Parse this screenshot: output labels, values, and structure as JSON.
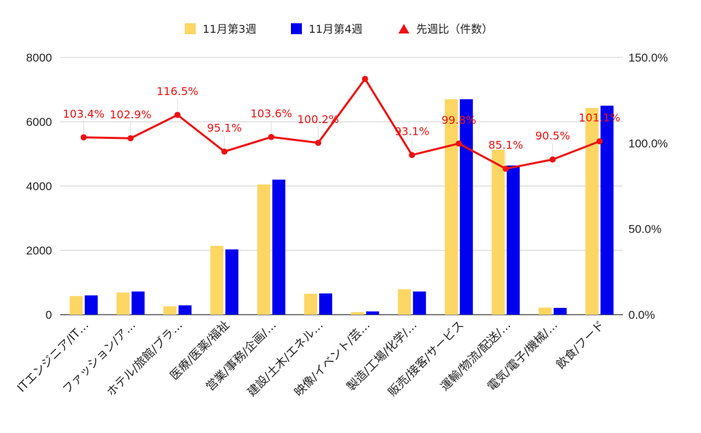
{
  "chart_data": {
    "type": "bar",
    "categories": [
      "ITエンジニア/IT…",
      "ファッション/ア…",
      "ホテル/旅館/ブラ…",
      "医療/医薬/福祉",
      "営業/事務/企画/…",
      "建設/土木/エネル…",
      "映像/イベント/芸…",
      "製造/工場/化学/…",
      "販売/接客/サービス",
      "運輸/物流/配送/…",
      "電気/電子/機械/…",
      "飲食/フード"
    ],
    "series": [
      {
        "name": "11月第3週",
        "type": "bar",
        "axis": "left",
        "color": "#fdd663",
        "values": [
          580,
          690,
          260,
          2140,
          4050,
          650,
          80,
          790,
          6700,
          5130,
          220,
          6430
        ]
      },
      {
        "name": "11月第4週",
        "type": "bar",
        "axis": "left",
        "color": "#0000ee",
        "values": [
          600,
          720,
          290,
          2030,
          4200,
          660,
          100,
          720,
          6700,
          4640,
          210,
          6500
        ]
      },
      {
        "name": "先週比（件数）",
        "type": "line",
        "axis": "right",
        "color": "#ee1111",
        "values": [
          103.4,
          102.9,
          116.5,
          95.1,
          103.6,
          100.2,
          137.5,
          93.1,
          99.8,
          85.1,
          90.5,
          101.1
        ],
        "labels": [
          "103.4%",
          "102.9%",
          "116.5%",
          "95.1%",
          "103.6%",
          "100.2%",
          "",
          "93.1%",
          "99.8%",
          "85.1%",
          "90.5%",
          "101.1%"
        ]
      }
    ],
    "y_left": {
      "min": 0,
      "max": 8000,
      "ticks": [
        "0",
        "2000",
        "4000",
        "6000",
        "8000"
      ]
    },
    "y_right": {
      "min": 0,
      "max": 150,
      "ticks": [
        "0.0%",
        "50.0%",
        "100.0%",
        "150.0%"
      ]
    },
    "grid": true,
    "legend_position": "top-center"
  }
}
